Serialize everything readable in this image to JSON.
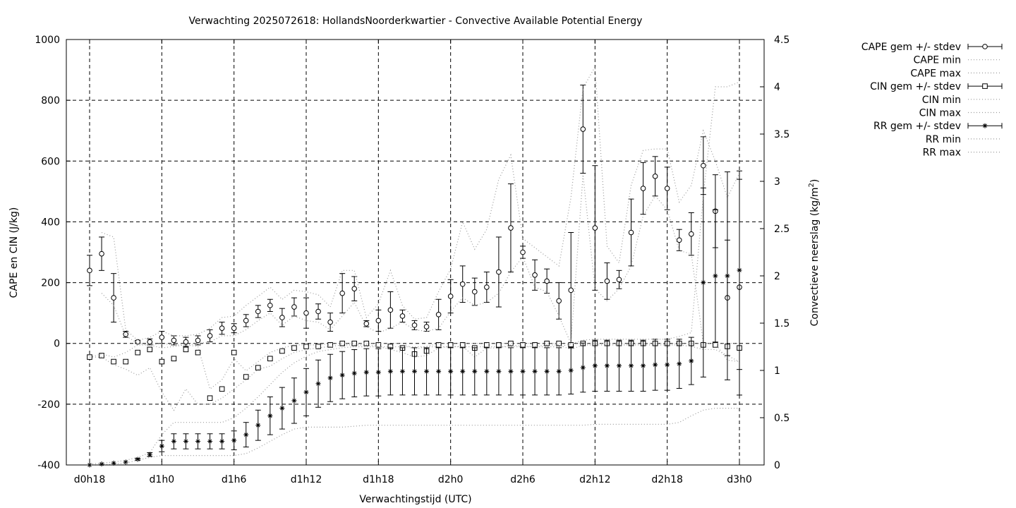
{
  "chart_data": {
    "type": "line",
    "title": "Verwachting 2025072618: HollandsNoorderkwartier - Convective Available Potential Energy",
    "xlabel": "Verwachtingstijd (UTC)",
    "ylabel": "CAPE en CIN (J/kg)",
    "y2label_main": "Convectieve neerslag (kg/m",
    "y2label_sup": "2",
    "y2label_end": ")",
    "xlim": [
      0,
      54
    ],
    "ylim": [
      -400,
      1000
    ],
    "y2lim": [
      0,
      4.5
    ],
    "grid": true,
    "legend_position": "top-right outside",
    "x_ticks": [
      {
        "x": 0,
        "label": "d0h18"
      },
      {
        "x": 6,
        "label": "d1h0"
      },
      {
        "x": 12,
        "label": "d1h6"
      },
      {
        "x": 18,
        "label": "d1h12"
      },
      {
        "x": 24,
        "label": "d1h18"
      },
      {
        "x": 30,
        "label": "d2h0"
      },
      {
        "x": 36,
        "label": "d2h6"
      },
      {
        "x": 42,
        "label": "d2h12"
      },
      {
        "x": 48,
        "label": "d2h18"
      },
      {
        "x": 54,
        "label": "d3h0"
      }
    ],
    "y_ticks": [
      -400,
      -200,
      0,
      200,
      400,
      600,
      800,
      1000
    ],
    "y2_ticks": [
      {
        "v": 0,
        "label": "0"
      },
      {
        "v": 0.5,
        "label": "0.5"
      },
      {
        "v": 1,
        "label": "1"
      },
      {
        "v": 1.5,
        "label": "1.5"
      },
      {
        "v": 2,
        "label": "2"
      },
      {
        "v": 2.5,
        "label": "2.5"
      },
      {
        "v": 3,
        "label": "3"
      },
      {
        "v": 3.5,
        "label": "3.5"
      },
      {
        "v": 4,
        "label": "4"
      },
      {
        "v": 4.5,
        "label": "4.5"
      }
    ],
    "legend": [
      "CAPE gem +/- stdev",
      "CAPE min",
      "CAPE max",
      "CIN gem +/- stdev",
      "CIN min",
      "CIN max",
      "RR gem +/- stdev",
      "RR min",
      "RR max"
    ],
    "x": [
      0,
      1,
      2,
      3,
      4,
      5,
      6,
      7,
      8,
      9,
      10,
      11,
      12,
      13,
      14,
      15,
      16,
      17,
      18,
      19,
      20,
      21,
      22,
      23,
      24,
      25,
      26,
      27,
      28,
      29,
      30,
      31,
      32,
      33,
      34,
      35,
      36,
      37,
      38,
      39,
      40,
      41,
      42,
      43,
      44,
      45,
      46,
      47,
      48,
      49,
      50,
      51,
      52,
      53,
      54
    ],
    "series": [
      {
        "name": "CAPE gem +/- stdev",
        "axis": "y1",
        "marker": "circle",
        "mean": [
          240,
          295,
          150,
          30,
          5,
          5,
          20,
          10,
          5,
          10,
          25,
          50,
          50,
          75,
          105,
          125,
          85,
          120,
          100,
          105,
          70,
          165,
          180,
          65,
          75,
          110,
          90,
          60,
          55,
          95,
          155,
          195,
          170,
          185,
          235,
          380,
          300,
          225,
          205,
          140,
          175,
          705,
          380,
          205,
          210,
          365,
          510,
          550,
          510,
          340,
          360,
          585,
          435,
          150,
          185
        ],
        "sd": [
          50,
          55,
          80,
          10,
          5,
          10,
          20,
          15,
          15,
          15,
          20,
          20,
          15,
          20,
          20,
          20,
          30,
          30,
          50,
          25,
          30,
          65,
          40,
          10,
          35,
          60,
          20,
          15,
          15,
          50,
          55,
          60,
          45,
          50,
          115,
          145,
          20,
          50,
          40,
          60,
          190,
          145,
          205,
          60,
          30,
          110,
          85,
          65,
          70,
          35,
          70,
          95,
          120,
          190,
          355
        ]
      },
      {
        "name": "CAPE min",
        "axis": "y1",
        "style": "dotted",
        "values": [
          null,
          165,
          125,
          25,
          0,
          -5,
          0,
          -5,
          -5,
          0,
          5,
          25,
          25,
          45,
          75,
          100,
          60,
          90,
          75,
          70,
          45,
          90,
          135,
          55,
          35,
          50,
          70,
          45,
          40,
          50,
          105,
          150,
          125,
          135,
          165,
          235,
          285,
          185,
          170,
          90,
          0,
          555,
          180,
          140,
          180,
          255,
          420,
          485,
          440,
          305,
          295,
          0,
          0,
          -55,
          -60
        ]
      },
      {
        "name": "CAPE max",
        "axis": "y1",
        "style": "dotted",
        "values": [
          null,
          365,
          350,
          45,
          10,
          20,
          40,
          25,
          25,
          30,
          50,
          85,
          90,
          125,
          155,
          185,
          145,
          175,
          170,
          160,
          120,
          240,
          240,
          85,
          130,
          240,
          125,
          80,
          85,
          170,
          245,
          400,
          310,
          375,
          540,
          620,
          345,
          315,
          285,
          255,
          480,
          840,
          910,
          320,
          265,
          520,
          635,
          640,
          640,
          465,
          520,
          700,
          600,
          480,
          560
        ]
      },
      {
        "name": "CIN gem +/- stdev",
        "axis": "y1",
        "marker": "square",
        "mean": [
          -45,
          -40,
          -60,
          -60,
          -30,
          -20,
          -60,
          -50,
          -20,
          -30,
          -180,
          -150,
          -30,
          -110,
          -80,
          -50,
          -25,
          -15,
          -10,
          -10,
          -5,
          0,
          0,
          0,
          -5,
          -10,
          -15,
          -35,
          -25,
          -5,
          -5,
          -5,
          -15,
          -5,
          -5,
          0,
          -5,
          -5,
          0,
          0,
          -5,
          0,
          0,
          0,
          0,
          0,
          0,
          0,
          0,
          0,
          0,
          -5,
          -5,
          -10,
          -15
        ]
      },
      {
        "name": "CIN min",
        "axis": "y1",
        "style": "dotted",
        "values": [
          -45,
          -45,
          -70,
          -85,
          -105,
          -80,
          -160,
          -220,
          -150,
          -200,
          -200,
          -180,
          -150,
          -120,
          -85,
          -75,
          -50,
          -30,
          -20,
          -15,
          -10,
          -5,
          -5,
          -5,
          -10,
          -20,
          -30,
          -45,
          -40,
          -15,
          -10,
          -10,
          -45,
          -15,
          -15,
          -5,
          -10,
          -10,
          -5,
          -5,
          -20,
          -5,
          -5,
          -5,
          -5,
          -5,
          -5,
          -5,
          -5,
          -5,
          -10,
          -20,
          -20,
          -40,
          -60
        ]
      },
      {
        "name": "CIN max",
        "axis": "y1",
        "style": "dotted",
        "values": [
          -45,
          -35,
          -45,
          -30,
          -5,
          -5,
          -15,
          -10,
          -5,
          -10,
          -150,
          -120,
          -50,
          -90,
          -60,
          -30,
          -15,
          -5,
          -5,
          -5,
          0,
          0,
          0,
          0,
          0,
          0,
          0,
          -20,
          -10,
          0,
          0,
          0,
          0,
          0,
          0,
          0,
          0,
          0,
          0,
          0,
          0,
          0,
          0,
          0,
          0,
          0,
          0,
          0,
          0,
          0,
          0,
          0,
          0,
          0,
          0
        ]
      },
      {
        "name": "RR gem +/- stdev",
        "axis": "y2",
        "marker": "star",
        "mean": [
          0,
          0.01,
          0.02,
          0.03,
          0.06,
          0.11,
          0.2,
          0.25,
          0.25,
          0.25,
          0.25,
          0.25,
          0.26,
          0.32,
          0.42,
          0.52,
          0.6,
          0.68,
          0.77,
          0.86,
          0.92,
          0.95,
          0.97,
          0.98,
          0.98,
          0.99,
          0.99,
          0.99,
          0.99,
          0.99,
          0.99,
          0.99,
          0.99,
          0.99,
          0.99,
          0.99,
          0.99,
          0.99,
          0.99,
          0.99,
          1.0,
          1.03,
          1.05,
          1.05,
          1.05,
          1.05,
          1.05,
          1.06,
          1.06,
          1.07,
          1.1,
          1.93,
          2.0,
          2.0,
          2.06
        ],
        "sd": [
          0,
          0,
          0,
          0,
          0.01,
          0.02,
          0.06,
          0.08,
          0.08,
          0.08,
          0.08,
          0.08,
          0.1,
          0.13,
          0.16,
          0.2,
          0.22,
          0.24,
          0.25,
          0.25,
          0.25,
          0.25,
          0.25,
          0.25,
          0.25,
          0.25,
          0.25,
          0.25,
          0.25,
          0.25,
          0.25,
          0.25,
          0.25,
          0.25,
          0.25,
          0.25,
          0.25,
          0.25,
          0.25,
          0.25,
          0.25,
          0.26,
          0.27,
          0.27,
          0.27,
          0.27,
          0.27,
          0.27,
          0.27,
          0.26,
          0.25,
          1.0,
          0.7,
          1.1,
          1.05
        ]
      },
      {
        "name": "RR min",
        "axis": "y2",
        "style": "dotted",
        "values": [
          0,
          0,
          0.01,
          0.02,
          0.05,
          0.08,
          0.1,
          0.1,
          0.1,
          0.1,
          0.1,
          0.1,
          0.1,
          0.12,
          0.18,
          0.25,
          0.32,
          0.38,
          0.4,
          0.4,
          0.4,
          0.4,
          0.41,
          0.42,
          0.42,
          0.42,
          0.42,
          0.42,
          0.42,
          0.42,
          0.42,
          0.42,
          0.42,
          0.42,
          0.42,
          0.42,
          0.42,
          0.42,
          0.42,
          0.42,
          0.42,
          0.42,
          0.43,
          0.43,
          0.43,
          0.43,
          0.43,
          0.43,
          0.43,
          0.45,
          0.52,
          0.58,
          0.6,
          0.6,
          0.6
        ]
      },
      {
        "name": "RR max",
        "axis": "y2",
        "style": "dotted",
        "values": [
          0.01,
          0.02,
          0.03,
          0.05,
          0.08,
          0.13,
          0.32,
          0.45,
          0.45,
          0.45,
          0.45,
          0.45,
          0.5,
          0.6,
          0.72,
          0.85,
          0.98,
          1.08,
          1.15,
          1.2,
          1.22,
          1.24,
          1.25,
          1.25,
          1.25,
          1.25,
          1.25,
          1.25,
          1.25,
          1.25,
          1.25,
          1.25,
          1.25,
          1.25,
          1.25,
          1.25,
          1.25,
          1.25,
          1.25,
          1.25,
          1.28,
          1.32,
          1.33,
          1.33,
          1.33,
          1.33,
          1.33,
          1.33,
          1.33,
          1.36,
          1.4,
          2.85,
          4.0,
          4.0,
          4.05
        ]
      }
    ]
  }
}
